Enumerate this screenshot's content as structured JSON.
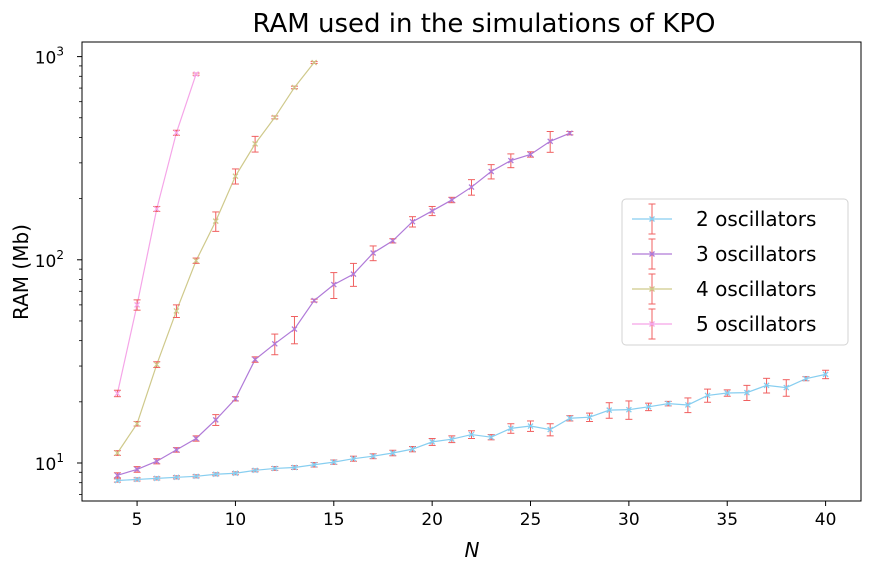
{
  "chart_data": {
    "type": "line",
    "title": "RAM used in the simulations of KPO",
    "xlabel": "N",
    "ylabel": "RAM (Mb)",
    "yscale": "log",
    "xlim": [
      2.2,
      41.8
    ],
    "ylim": [
      6.5,
      1180
    ],
    "xticks": [
      5,
      10,
      15,
      20,
      25,
      30,
      35,
      40
    ],
    "yticks": [
      {
        "value": 10,
        "base": "10",
        "exp": "1"
      },
      {
        "value": 100,
        "base": "10",
        "exp": "2"
      },
      {
        "value": 1000,
        "base": "10",
        "exp": "3"
      }
    ],
    "grid": false,
    "legend_position": "center-right",
    "error_bar_color": "#f06060",
    "series": [
      {
        "name": "2 oscillators",
        "color": "#87cef0",
        "x": [
          4,
          5,
          6,
          7,
          8,
          9,
          10,
          11,
          12,
          13,
          14,
          15,
          16,
          17,
          18,
          19,
          20,
          21,
          22,
          23,
          24,
          25,
          26,
          27,
          28,
          29,
          30,
          31,
          32,
          33,
          34,
          35,
          36,
          37,
          38,
          39,
          40
        ],
        "y": [
          8.2,
          8.3,
          8.4,
          8.5,
          8.6,
          8.8,
          8.9,
          9.2,
          9.4,
          9.5,
          9.8,
          10.1,
          10.5,
          10.8,
          11.2,
          11.7,
          12.7,
          13.1,
          13.8,
          13.4,
          14.8,
          15.2,
          14.6,
          16.6,
          16.8,
          18.2,
          18.3,
          18.9,
          19.6,
          19.3,
          21.5,
          22.1,
          22.2,
          24.1,
          23.5,
          26.0,
          27.3
        ],
        "err": [
          0.15,
          0.15,
          0.15,
          0.15,
          0.15,
          0.15,
          0.15,
          0.15,
          0.2,
          0.2,
          0.25,
          0.25,
          0.3,
          0.3,
          0.35,
          0.35,
          0.5,
          0.5,
          0.6,
          0.4,
          0.8,
          0.9,
          1.0,
          0.5,
          0.8,
          1.6,
          1.9,
          0.8,
          0.5,
          1.6,
          1.6,
          0.8,
          1.9,
          2.0,
          2.2,
          0.6,
          1.3
        ]
      },
      {
        "name": "3 oscillators",
        "color": "#b07ad8",
        "x": [
          4,
          5,
          6,
          7,
          8,
          9,
          10,
          11,
          12,
          13,
          14,
          15,
          16,
          17,
          18,
          19,
          20,
          21,
          22,
          23,
          24,
          25,
          26,
          27
        ],
        "y": [
          8.7,
          9.3,
          10.2,
          11.6,
          13.2,
          16.3,
          20.7,
          32.3,
          38.6,
          45.6,
          63.0,
          75.5,
          85.0,
          108,
          124,
          154,
          174,
          197,
          228,
          272,
          308,
          330,
          383,
          420
        ],
        "err": [
          0.25,
          0.3,
          0.3,
          0.3,
          0.4,
          1.0,
          0.5,
          1.0,
          4.5,
          7.0,
          1.0,
          11.0,
          11.0,
          9.0,
          3.0,
          9.0,
          9.0,
          6.0,
          20.0,
          22.0,
          24.0,
          10.0,
          45.0,
          8.0
        ]
      },
      {
        "name": "4 oscillators",
        "color": "#cfc98b",
        "x": [
          4,
          5,
          6,
          7,
          8,
          9,
          10,
          11,
          12,
          13,
          14
        ],
        "y": [
          11.2,
          15.6,
          30.5,
          56.0,
          99.0,
          155,
          258,
          372,
          502,
          705,
          935
        ],
        "err": [
          0.3,
          0.4,
          1.0,
          4.0,
          3.0,
          17.0,
          22.0,
          33.0,
          8.0,
          10.0,
          10.0
        ]
      },
      {
        "name": "5 oscillators",
        "color": "#f5a5e8",
        "x": [
          4,
          5,
          6,
          7,
          8
        ],
        "y": [
          22.0,
          60.0,
          178,
          422,
          820
        ],
        "err": [
          0.8,
          3.5,
          5.0,
          12.0,
          10.0
        ]
      }
    ]
  }
}
